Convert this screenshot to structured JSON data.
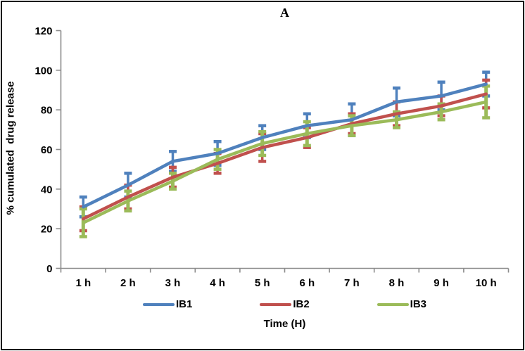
{
  "figure": {
    "panel_label": "A"
  },
  "chart_data": {
    "type": "line",
    "title": "A",
    "xlabel": "Time (H)",
    "ylabel": "% cumulated  drug release",
    "categories": [
      "1 h",
      "2 h",
      "3 h",
      "4 h",
      "5 h",
      "6 h",
      "7 h",
      "8 h",
      "9 h",
      "10 h"
    ],
    "y_ticks": [
      0,
      20,
      40,
      60,
      80,
      100,
      120
    ],
    "ylim": [
      0,
      120
    ],
    "grid": false,
    "legend_position": "bottom",
    "axis_color": "#8C8C8C",
    "text_color": "#000000",
    "error_bars": true,
    "series": [
      {
        "name": "IB1",
        "color": "#4F81BD",
        "values": [
          31,
          42,
          54,
          58,
          66,
          72,
          75,
          84,
          87,
          93
        ],
        "errors": [
          5,
          6,
          5,
          6,
          6,
          6,
          8,
          7,
          7,
          6
        ]
      },
      {
        "name": "IB2",
        "color": "#C0504D",
        "values": [
          25,
          36,
          46,
          53,
          61,
          66,
          73,
          78,
          82,
          88
        ],
        "errors": [
          6,
          6,
          5,
          5,
          7,
          5,
          5,
          6,
          5,
          7
        ]
      },
      {
        "name": "IB3",
        "color": "#9BBB59",
        "values": [
          23,
          34,
          44,
          55,
          63,
          68,
          72,
          75,
          79,
          84
        ],
        "errors": [
          7,
          5,
          4,
          5,
          6,
          6,
          5,
          4,
          4,
          8
        ]
      }
    ]
  }
}
